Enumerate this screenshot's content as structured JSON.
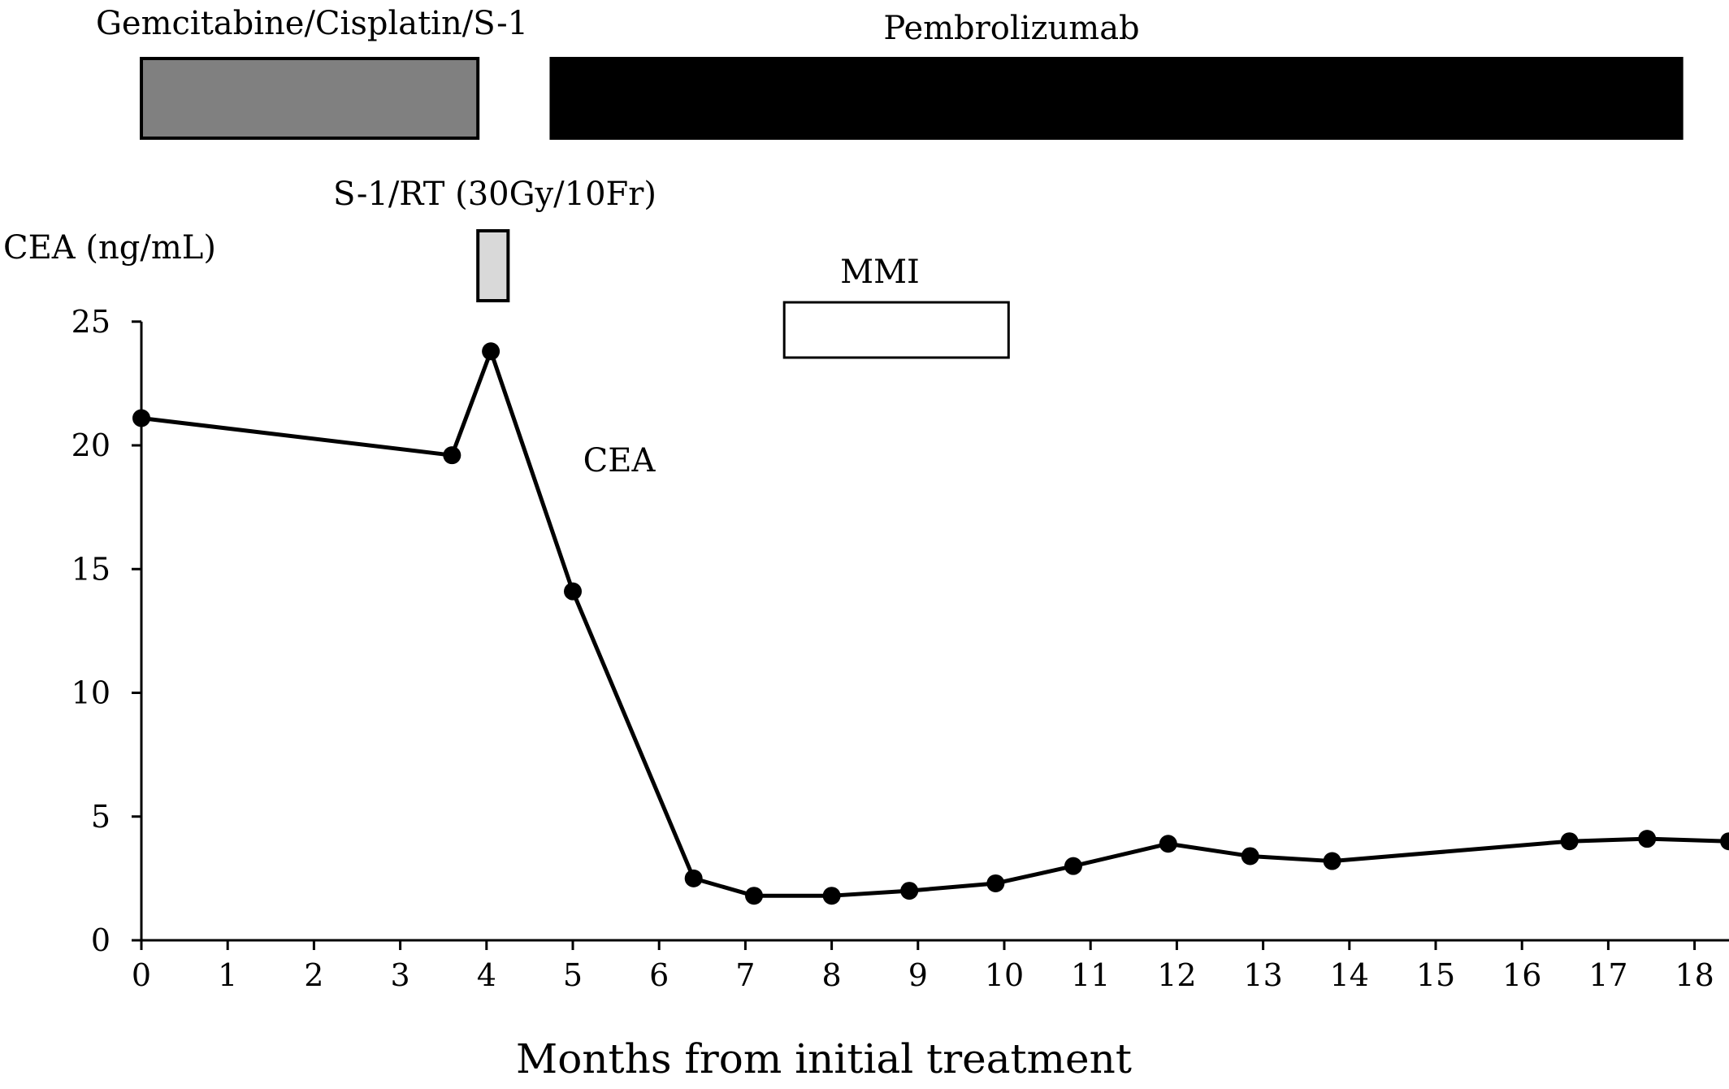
{
  "chart_data": {
    "type": "line",
    "ylabel": "CEA (ng/mL)",
    "xlabel": "Months from initial treatment",
    "ylim": [
      0,
      25
    ],
    "xlim": [
      0,
      18.4
    ],
    "xticks": [
      0,
      1,
      2,
      3,
      4,
      5,
      6,
      7,
      8,
      9,
      10,
      11,
      12,
      13,
      14,
      15,
      16,
      17,
      18
    ],
    "yticks": [
      0,
      5,
      10,
      15,
      20,
      25
    ],
    "grid": false,
    "series": [
      {
        "name": "CEA",
        "x": [
          0,
          3.6,
          4.05,
          5.0,
          6.4,
          7.1,
          8.0,
          8.9,
          9.9,
          10.8,
          11.9,
          12.85,
          13.8,
          16.55,
          17.45,
          18.4
        ],
        "y": [
          21.1,
          19.6,
          23.8,
          14.1,
          2.5,
          1.8,
          1.8,
          2.0,
          2.3,
          3.0,
          3.9,
          3.4,
          3.2,
          4.0,
          4.1,
          4.0
        ]
      }
    ],
    "treatments": [
      {
        "label": "Gemcitabine/Cisplatin/S-1",
        "start": 0,
        "end": 3.9,
        "color": "#808080"
      },
      {
        "label": "Pembrolizumab",
        "start": 4.75,
        "end": 17.85,
        "color": "#000000"
      },
      {
        "label": "S-1/RT (30Gy/10Fr)",
        "start": 3.9,
        "end": 4.25,
        "color": "#d9d9d9"
      },
      {
        "label": "MMI",
        "start": 7.45,
        "end": 10.05,
        "color": "#ffffff"
      }
    ]
  }
}
